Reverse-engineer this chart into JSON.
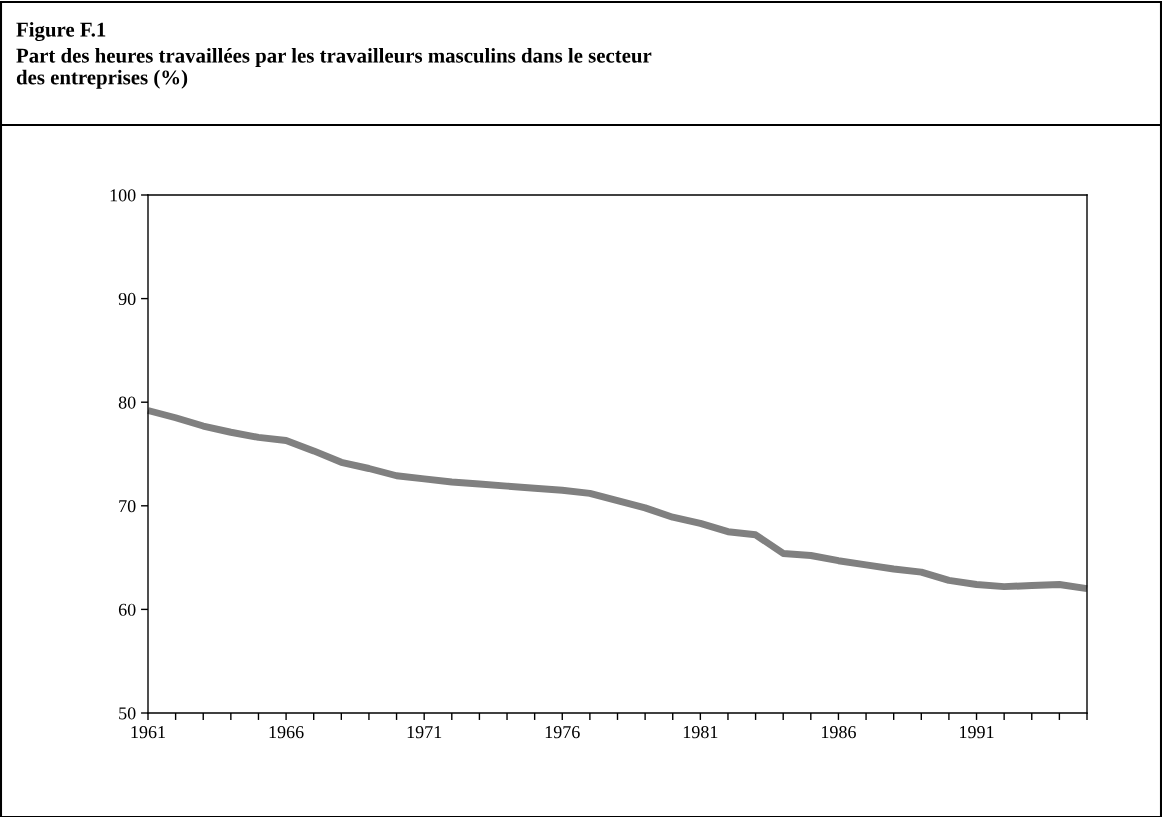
{
  "chart_data": {
    "type": "line",
    "title": "Figure F.1",
    "subtitle": "Part des heures travaillées par les travailleurs masculins dans le secteur\ndes entreprises (%)",
    "x": [
      1961,
      1962,
      1963,
      1964,
      1965,
      1966,
      1967,
      1968,
      1969,
      1970,
      1971,
      1972,
      1973,
      1974,
      1975,
      1976,
      1977,
      1978,
      1979,
      1980,
      1981,
      1982,
      1983,
      1984,
      1985,
      1986,
      1987,
      1988,
      1989,
      1990,
      1991,
      1992,
      1993,
      1994,
      1995
    ],
    "series": [
      {
        "color": "#808080",
        "values": [
          79.2,
          78.5,
          77.7,
          77.1,
          76.6,
          76.3,
          75.3,
          74.2,
          73.6,
          72.9,
          72.6,
          72.3,
          72.1,
          71.9,
          71.7,
          71.5,
          71.2,
          70.5,
          69.8,
          68.9,
          68.3,
          67.5,
          67.2,
          65.4,
          65.2,
          64.7,
          64.3,
          63.9,
          63.6,
          62.8,
          62.4,
          62.2,
          62.3,
          62.4,
          62.0
        ]
      }
    ],
    "xlim": [
      1961,
      1995
    ],
    "xticks": [
      1961,
      {
        "value": 1962,
        "label": null
      },
      {
        "value": 1963,
        "label": null
      },
      {
        "value": 1964,
        "label": null
      },
      {
        "value": 1965,
        "label": null
      },
      1966,
      {
        "value": 1967,
        "label": null
      },
      {
        "value": 1968,
        "label": null
      },
      {
        "value": 1969,
        "label": null
      },
      {
        "value": 1970,
        "label": null
      },
      1971,
      {
        "value": 1972,
        "label": null
      },
      {
        "value": 1973,
        "label": null
      },
      {
        "value": 1974,
        "label": null
      },
      {
        "value": 1975,
        "label": null
      },
      1976,
      {
        "value": 1977,
        "label": null
      },
      {
        "value": 1978,
        "label": null
      },
      {
        "value": 1979,
        "label": null
      },
      {
        "value": 1980,
        "label": null
      },
      1981,
      {
        "value": 1982,
        "label": null
      },
      {
        "value": 1983,
        "label": null
      },
      {
        "value": 1984,
        "label": null
      },
      {
        "value": 1985,
        "label": null
      },
      1986,
      {
        "value": 1987,
        "label": null
      },
      {
        "value": 1988,
        "label": null
      },
      {
        "value": 1989,
        "label": null
      },
      {
        "value": 1990,
        "label": null
      },
      1991,
      {
        "value": 1992,
        "label": null
      },
      {
        "value": 1993,
        "label": null
      },
      {
        "value": 1994,
        "label": null
      },
      {
        "value": 1995,
        "label": null
      }
    ],
    "ylim": [
      50,
      100
    ],
    "yticks": [
      50,
      60,
      70,
      80,
      90,
      100
    ],
    "grid": false,
    "marker": "none",
    "line_style": "solid"
  }
}
